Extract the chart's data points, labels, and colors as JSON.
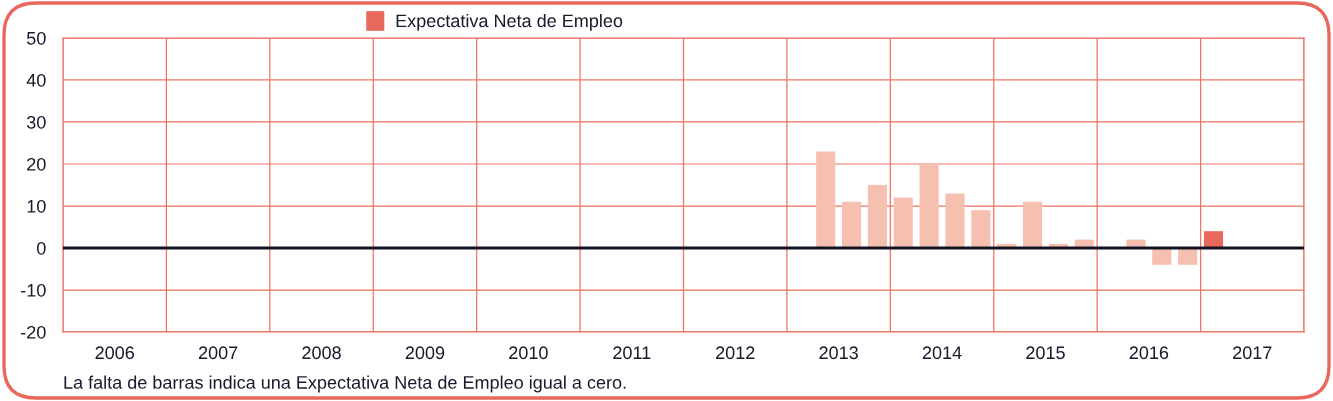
{
  "chart_data": {
    "type": "bar",
    "series": [
      {
        "x": [
          2013.375,
          2013.625,
          2013.875,
          2014.125,
          2014.375,
          2014.625,
          2014.875,
          2015.125,
          2015.375,
          2015.625,
          2015.875,
          2016.125,
          2016.375,
          2016.625,
          2016.875
        ],
        "values": [
          23,
          11,
          15,
          12,
          20,
          13,
          9,
          1,
          11,
          1,
          2,
          0,
          2,
          -4,
          -4
        ],
        "color": "#f6c0b0"
      },
      {
        "name": "Expectativa Neta de Empleo",
        "x": [
          2017.125
        ],
        "values": [
          4
        ],
        "color": "#e8695b"
      }
    ],
    "xlim": [
      2006,
      2018
    ],
    "xticks": [
      {
        "value": 2006,
        "label": null
      },
      {
        "value": 2006.5,
        "label": "2006"
      },
      {
        "value": 2007,
        "label": null
      },
      {
        "value": 2007.5,
        "label": "2007"
      },
      {
        "value": 2008,
        "label": null
      },
      {
        "value": 2008.5,
        "label": "2008"
      },
      {
        "value": 2009,
        "label": null
      },
      {
        "value": 2009.5,
        "label": "2009"
      },
      {
        "value": 2010,
        "label": null
      },
      {
        "value": 2010.5,
        "label": "2010"
      },
      {
        "value": 2011,
        "label": null
      },
      {
        "value": 2011.5,
        "label": "2011"
      },
      {
        "value": 2012,
        "label": null
      },
      {
        "value": 2012.5,
        "label": "2012"
      },
      {
        "value": 2013,
        "label": null
      },
      {
        "value": 2013.5,
        "label": "2013"
      },
      {
        "value": 2014,
        "label": null
      },
      {
        "value": 2014.5,
        "label": "2014"
      },
      {
        "value": 2015,
        "label": null
      },
      {
        "value": 2015.5,
        "label": "2015"
      },
      {
        "value": 2016,
        "label": null
      },
      {
        "value": 2016.5,
        "label": "2016"
      },
      {
        "value": 2017,
        "label": null
      },
      {
        "value": 2017.5,
        "label": "2017"
      },
      {
        "value": 2018,
        "label": null
      }
    ],
    "ylim": [
      -20,
      50
    ],
    "yticks": [
      -20,
      -10,
      0,
      10,
      20,
      30,
      40,
      50
    ],
    "grid": true,
    "legend": "top",
    "ref_lines": [
      {
        "axis": "y",
        "value": 0,
        "color": "#111122"
      }
    ],
    "annotations": [
      "La falta de barras indica una Expectativa Neta de Empleo igual a cero."
    ]
  }
}
